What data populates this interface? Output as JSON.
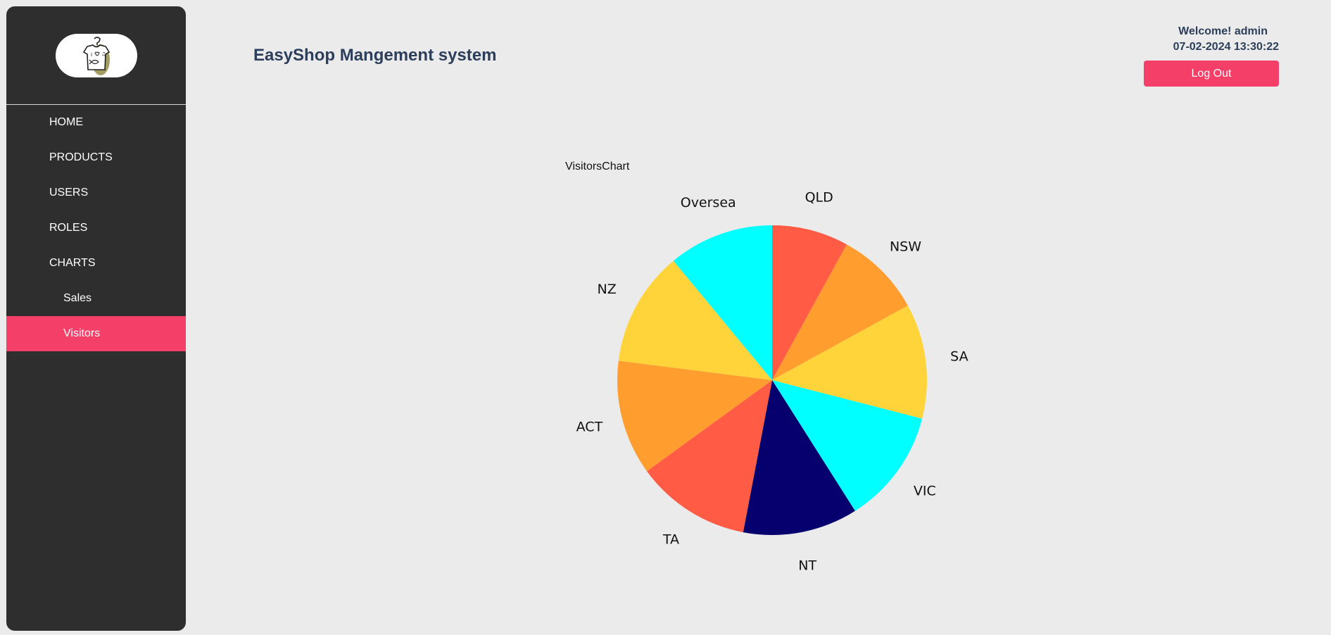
{
  "sidebar": {
    "logo_icon": "tshirt-logo-icon",
    "items": [
      {
        "label": "HOME",
        "sub": false,
        "active": false,
        "name": "nav-home"
      },
      {
        "label": "PRODUCTS",
        "sub": false,
        "active": false,
        "name": "nav-products"
      },
      {
        "label": "USERS",
        "sub": false,
        "active": false,
        "name": "nav-users"
      },
      {
        "label": "ROLES",
        "sub": false,
        "active": false,
        "name": "nav-roles"
      },
      {
        "label": "CHARTS",
        "sub": false,
        "active": false,
        "name": "nav-charts"
      },
      {
        "label": "Sales",
        "sub": true,
        "active": false,
        "name": "nav-charts-sales"
      },
      {
        "label": "Visitors",
        "sub": true,
        "active": true,
        "name": "nav-charts-visitors"
      }
    ]
  },
  "header": {
    "title": "EasyShop Mangement system",
    "welcome": "Welcome! admin",
    "datetime": "07-02-2024 13:30:22",
    "logout_label": "Log Out"
  },
  "colors": {
    "accent": "#f43f68",
    "sidebar_bg": "#2e2e2e",
    "title": "#2c3e5a"
  },
  "chart_data": {
    "type": "pie",
    "title": "VisitorsChart",
    "categories": [
      "QLD",
      "NSW",
      "SA",
      "VIC",
      "NT",
      "TA",
      "ACT",
      "NZ",
      "Oversea"
    ],
    "values": [
      8,
      9,
      12,
      12,
      12,
      12,
      12,
      12,
      11
    ],
    "colors": [
      "#ff5b45",
      "#ff9d2f",
      "#ffd43a",
      "#00ffff",
      "#05006e",
      "#ff5b45",
      "#ff9d2f",
      "#ffd43a",
      "#00ffff"
    ],
    "legend": "none",
    "start": "top",
    "direction": "clockwise"
  }
}
